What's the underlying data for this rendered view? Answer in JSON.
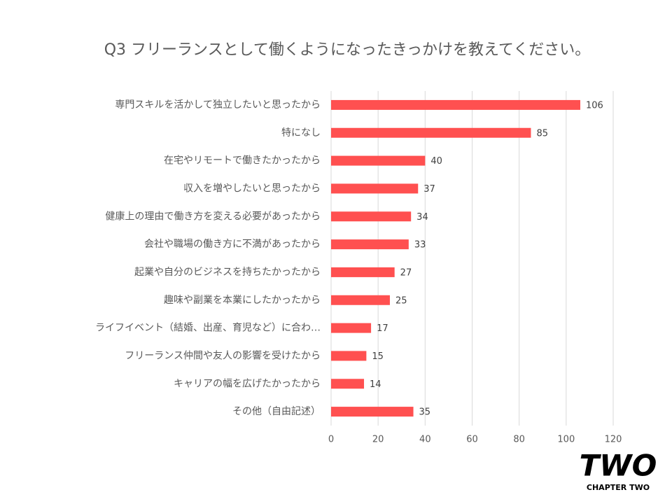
{
  "chart_data": {
    "type": "bar",
    "orientation": "horizontal",
    "title": "Q3 フリーランスとして働くようになったきっかけを教えてください。",
    "categories": [
      "専門スキルを活かして独立したいと思ったから",
      "特になし",
      "在宅やリモートで働きたかったから",
      "収入を増やしたいと思ったから",
      "健康上の理由で働き方を変える必要があったから",
      "会社や職場の働き方に不満があったから",
      "起業や自分のビジネスを持ちたかったから",
      "趣味や副業を本業にしたかったから",
      "ライフイベント（結婚、出産、育児など）に合わ…",
      "フリーランス仲間や友人の影響を受けたから",
      "キャリアの幅を広げたかったから",
      "その他（自由記述）"
    ],
    "values": [
      106,
      85,
      40,
      37,
      34,
      33,
      27,
      25,
      17,
      15,
      14,
      35
    ],
    "color": "#ff5050",
    "xlim": [
      0,
      120
    ],
    "xticks": [
      0,
      20,
      40,
      60,
      80,
      100,
      120
    ],
    "grid": true
  },
  "logo": {
    "mark": "TWO",
    "caption": "CHAPTER TWO"
  }
}
